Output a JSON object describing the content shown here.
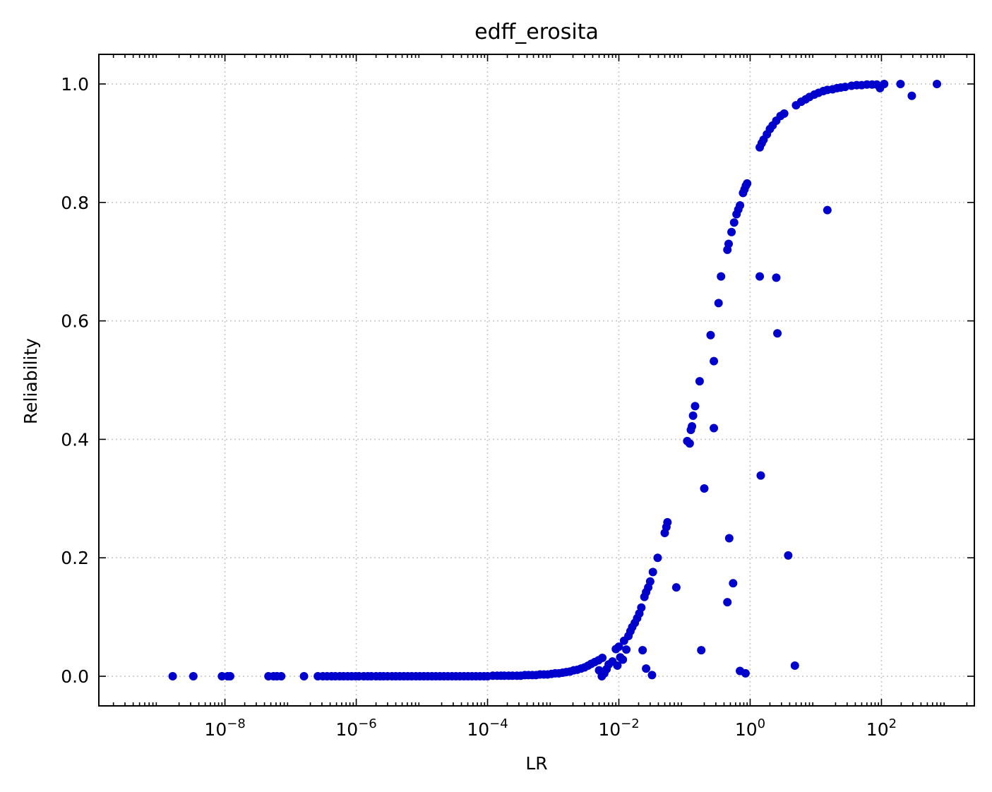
{
  "chart_data": {
    "type": "scatter",
    "title": "edff_erosita",
    "xlabel": "LR",
    "ylabel": "Reliability",
    "x_scale": "log",
    "xlim": [
      1.2e-10,
      2600
    ],
    "ylim": [
      -0.05,
      1.05
    ],
    "x_tick_labels": [
      {
        "base": "10",
        "exp": "−8",
        "value": 1e-08
      },
      {
        "base": "10",
        "exp": "−6",
        "value": 1e-06
      },
      {
        "base": "10",
        "exp": "−4",
        "value": 0.0001
      },
      {
        "base": "10",
        "exp": "−2",
        "value": 0.01
      },
      {
        "base": "10",
        "exp": "0",
        "value": 1
      },
      {
        "base": "10",
        "exp": "2",
        "value": 100
      }
    ],
    "y_tick_labels": [
      "0.0",
      "0.2",
      "0.4",
      "0.6",
      "0.8",
      "1.0"
    ],
    "y_ticks": [
      0.0,
      0.2,
      0.4,
      0.6,
      0.8,
      1.0
    ],
    "grid": true,
    "marker_color": "#0000cc",
    "series": [
      {
        "points": [
          [
            1.6e-09,
            0.0
          ],
          [
            3.3e-09,
            0.0
          ],
          [
            9e-09,
            0.0
          ],
          [
            1.1e-08,
            0.0
          ],
          [
            1.2e-08,
            0.0
          ],
          [
            4.6e-08,
            0.0
          ],
          [
            5.5e-08,
            0.0
          ],
          [
            6.2e-08,
            0.0
          ],
          [
            7.2e-08,
            0.0
          ],
          [
            1.6e-07,
            0.0
          ],
          [
            2.6e-07,
            0.0
          ],
          [
            3.1e-07,
            0.0
          ],
          [
            3.6e-07,
            0.0
          ],
          [
            4.2e-07,
            0.0
          ],
          [
            4.8e-07,
            0.0
          ],
          [
            5.6e-07,
            0.0
          ],
          [
            6.4e-07,
            0.0
          ],
          [
            7.4e-07,
            0.0
          ],
          [
            8.5e-07,
            0.0
          ],
          [
            9.8e-07,
            0.0
          ],
          [
            1.1e-06,
            0.0
          ],
          [
            1.3e-06,
            0.0
          ],
          [
            1.5e-06,
            0.0
          ],
          [
            1.7e-06,
            0.0
          ],
          [
            2e-06,
            0.0
          ],
          [
            2.3e-06,
            0.0
          ],
          [
            2.6e-06,
            0.0
          ],
          [
            3e-06,
            0.0
          ],
          [
            3.5e-06,
            0.0
          ],
          [
            4e-06,
            0.0
          ],
          [
            4.6e-06,
            0.0
          ],
          [
            5.3e-06,
            0.0
          ],
          [
            6.1e-06,
            0.0
          ],
          [
            7e-06,
            0.0
          ],
          [
            8.1e-06,
            0.0
          ],
          [
            9.3e-06,
            0.0
          ],
          [
            1.07e-05,
            0.0
          ],
          [
            1.23e-05,
            0.0
          ],
          [
            1.42e-05,
            0.0
          ],
          [
            1.63e-05,
            0.0
          ],
          [
            1.88e-05,
            0.0
          ],
          [
            2.16e-05,
            0.0
          ],
          [
            2.49e-05,
            0.0
          ],
          [
            2.87e-05,
            0.0
          ],
          [
            3.3e-05,
            0.0
          ],
          [
            3.8e-05,
            0.0
          ],
          [
            4.37e-05,
            0.0
          ],
          [
            5.03e-05,
            0.0
          ],
          [
            5.79e-05,
            0.0
          ],
          [
            6.66e-05,
            0.0
          ],
          [
            7.67e-05,
            0.0
          ],
          [
            8.82e-05,
            0.0
          ],
          [
            0.0001,
            0.0
          ],
          [
            0.00012,
            0.001
          ],
          [
            0.00014,
            0.001
          ],
          [
            0.00016,
            0.001
          ],
          [
            0.00018,
            0.001
          ],
          [
            0.00021,
            0.001
          ],
          [
            0.00024,
            0.001
          ],
          [
            0.00028,
            0.001
          ],
          [
            0.00032,
            0.001
          ],
          [
            0.00037,
            0.002
          ],
          [
            0.00042,
            0.002
          ],
          [
            0.00048,
            0.002
          ],
          [
            0.00055,
            0.002
          ],
          [
            0.00063,
            0.003
          ],
          [
            0.00072,
            0.003
          ],
          [
            0.00082,
            0.003
          ],
          [
            0.00094,
            0.004
          ],
          [
            0.00107,
            0.005
          ],
          [
            0.00122,
            0.005
          ],
          [
            0.00139,
            0.006
          ],
          [
            0.00158,
            0.007
          ],
          [
            0.0018,
            0.008
          ],
          [
            0.00205,
            0.01
          ],
          [
            0.00233,
            0.011
          ],
          [
            0.00265,
            0.013
          ],
          [
            0.003,
            0.015
          ],
          [
            0.0034,
            0.018
          ],
          [
            0.0038,
            0.021
          ],
          [
            0.0043,
            0.024
          ],
          [
            0.0049,
            0.027
          ],
          [
            0.0056,
            0.031
          ],
          [
            0.009,
            0.046
          ],
          [
            0.01,
            0.05
          ],
          [
            0.012,
            0.06
          ],
          [
            0.014,
            0.068
          ],
          [
            0.015,
            0.076
          ],
          [
            0.016,
            0.083
          ],
          [
            0.0175,
            0.09
          ],
          [
            0.019,
            0.098
          ],
          [
            0.0205,
            0.106
          ],
          [
            0.022,
            0.116
          ],
          [
            0.0245,
            0.134
          ],
          [
            0.026,
            0.142
          ],
          [
            0.028,
            0.15
          ],
          [
            0.03,
            0.16
          ],
          [
            0.033,
            0.176
          ],
          [
            0.039,
            0.2
          ],
          [
            0.05,
            0.242
          ],
          [
            0.053,
            0.252
          ],
          [
            0.055,
            0.26
          ],
          [
            0.11,
            0.397
          ],
          [
            0.12,
            0.393
          ],
          [
            0.125,
            0.416
          ],
          [
            0.13,
            0.422
          ],
          [
            0.135,
            0.44
          ],
          [
            0.145,
            0.456
          ],
          [
            0.17,
            0.498
          ],
          [
            0.25,
            0.576
          ],
          [
            0.28,
            0.532
          ],
          [
            0.33,
            0.63
          ],
          [
            0.36,
            0.675
          ],
          [
            0.45,
            0.72
          ],
          [
            0.47,
            0.73
          ],
          [
            0.52,
            0.75
          ],
          [
            0.57,
            0.766
          ],
          [
            0.62,
            0.78
          ],
          [
            0.66,
            0.788
          ],
          [
            0.7,
            0.795
          ],
          [
            0.78,
            0.816
          ],
          [
            0.82,
            0.822
          ],
          [
            0.86,
            0.828
          ],
          [
            0.9,
            0.832
          ],
          [
            1.4,
            0.893
          ],
          [
            1.5,
            0.9
          ],
          [
            1.6,
            0.906
          ],
          [
            1.8,
            0.915
          ],
          [
            2.0,
            0.924
          ],
          [
            2.2,
            0.93
          ],
          [
            2.5,
            0.938
          ],
          [
            2.9,
            0.946
          ],
          [
            3.3,
            0.95
          ],
          [
            5.0,
            0.964
          ],
          [
            6.0,
            0.97
          ],
          [
            7.0,
            0.974
          ],
          [
            8.0,
            0.978
          ],
          [
            9.5,
            0.982
          ],
          [
            11.0,
            0.985
          ],
          [
            13.0,
            0.988
          ],
          [
            15.0,
            0.99
          ],
          [
            18.0,
            0.991
          ],
          [
            21.0,
            0.993
          ],
          [
            24.0,
            0.994
          ],
          [
            28.0,
            0.995
          ],
          [
            35.0,
            0.997
          ],
          [
            42.0,
            0.998
          ],
          [
            50.0,
            0.998
          ],
          [
            60.0,
            0.999
          ],
          [
            72.0,
            0.999
          ],
          [
            85.0,
            0.999
          ],
          [
            95.0,
            0.993
          ],
          [
            110.0,
            1.0
          ],
          [
            195.0,
            1.0
          ],
          [
            700.0,
            1.0
          ],
          [
            0.005,
            0.01
          ],
          [
            0.0055,
            0.0
          ],
          [
            0.006,
            0.005
          ],
          [
            0.0065,
            0.012
          ],
          [
            0.007,
            0.02
          ],
          [
            0.008,
            0.025
          ],
          [
            0.0095,
            0.018
          ],
          [
            0.0105,
            0.032
          ],
          [
            0.0115,
            0.028
          ],
          [
            0.013,
            0.045
          ],
          [
            0.023,
            0.044
          ],
          [
            0.026,
            0.013
          ],
          [
            0.032,
            0.002
          ],
          [
            0.075,
            0.15
          ],
          [
            0.18,
            0.044
          ],
          [
            0.2,
            0.317
          ],
          [
            0.28,
            0.419
          ],
          [
            0.45,
            0.125
          ],
          [
            0.48,
            0.233
          ],
          [
            0.55,
            0.157
          ],
          [
            0.7,
            0.009
          ],
          [
            0.85,
            0.005
          ],
          [
            1.4,
            0.675
          ],
          [
            1.45,
            0.339
          ],
          [
            2.5,
            0.673
          ],
          [
            2.6,
            0.579
          ],
          [
            3.8,
            0.204
          ],
          [
            4.8,
            0.018
          ],
          [
            15.0,
            0.787
          ],
          [
            290.0,
            0.98
          ]
        ]
      }
    ]
  }
}
